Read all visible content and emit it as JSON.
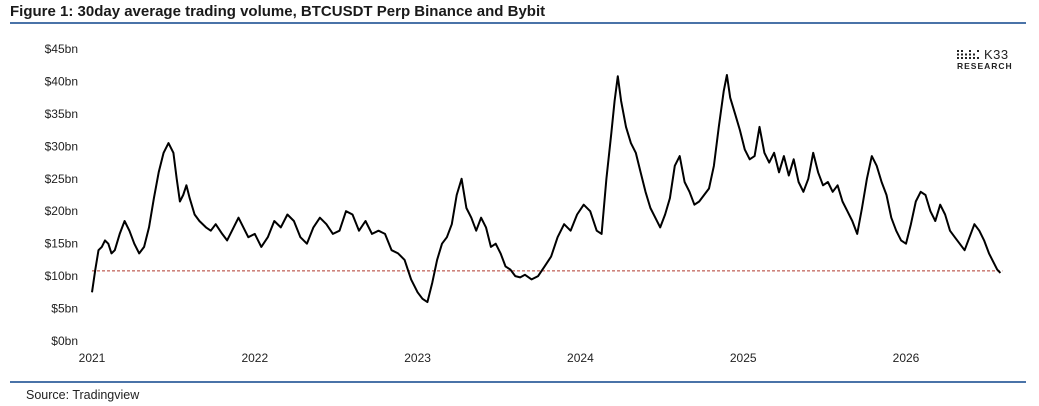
{
  "figure": {
    "title": "Figure 1: 30day average trading volume, BTCUSDT Perp Binance and Bybit",
    "source": "Source: Tradingview"
  },
  "logo": {
    "name": "K33",
    "sub": "RESEARCH",
    "icon": "k33-dots-logo"
  },
  "colors": {
    "line": "#000000",
    "reference": "#b03a2e",
    "rule": "#4a73a8"
  },
  "chart_data": {
    "type": "line",
    "title": "",
    "xlabel": "",
    "ylabel": "",
    "x_unit": "year",
    "xlim": [
      2021.0,
      2026.58
    ],
    "ylim": [
      0,
      45
    ],
    "yticks": [
      0,
      5,
      10,
      15,
      20,
      25,
      30,
      35,
      40,
      45
    ],
    "ytick_labels": [
      "$0bn",
      "$5bn",
      "$10bn",
      "$15bn",
      "$20bn",
      "$25bn",
      "$30bn",
      "$35bn",
      "$40bn",
      "$45bn"
    ],
    "xticks": [
      2021,
      2022,
      2023,
      2024,
      2025,
      2026
    ],
    "xtick_labels": [
      "2021",
      "2022",
      "2023",
      "2024",
      "2025",
      "2026"
    ],
    "grid": false,
    "reference_line": {
      "y": 10.8,
      "style": "dashed"
    },
    "series": [
      {
        "x": [
          2021.0,
          2021.02,
          2021.04,
          2021.06,
          2021.08,
          2021.1,
          2021.12,
          2021.14,
          2021.17,
          2021.2,
          2021.23,
          2021.26,
          2021.29,
          2021.32,
          2021.35,
          2021.38,
          2021.41,
          2021.44,
          2021.47,
          2021.5,
          2021.52,
          2021.54,
          2021.56,
          2021.58,
          2021.6,
          2021.63,
          2021.66,
          2021.7,
          2021.73,
          2021.76,
          2021.8,
          2021.83,
          2021.86,
          2021.9,
          2021.93,
          2021.96,
          2022.0,
          2022.04,
          2022.08,
          2022.12,
          2022.16,
          2022.2,
          2022.24,
          2022.28,
          2022.32,
          2022.36,
          2022.4,
          2022.44,
          2022.48,
          2022.52,
          2022.56,
          2022.6,
          2022.64,
          2022.68,
          2022.72,
          2022.76,
          2022.8,
          2022.84,
          2022.88,
          2022.92,
          2022.96,
          2023.0,
          2023.03,
          2023.06,
          2023.09,
          2023.12,
          2023.15,
          2023.18,
          2023.21,
          2023.24,
          2023.27,
          2023.3,
          2023.33,
          2023.36,
          2023.39,
          2023.42,
          2023.45,
          2023.48,
          2023.51,
          2023.54,
          2023.57,
          2023.6,
          2023.63,
          2023.66,
          2023.7,
          2023.74,
          2023.78,
          2023.82,
          2023.86,
          2023.9,
          2023.94,
          2023.98,
          2024.02,
          2024.06,
          2024.1,
          2024.13,
          2024.16,
          2024.19,
          2024.21,
          2024.23,
          2024.25,
          2024.28,
          2024.31,
          2024.34,
          2024.37,
          2024.4,
          2024.43,
          2024.46,
          2024.49,
          2024.52,
          2024.55,
          2024.58,
          2024.61,
          2024.64,
          2024.67,
          2024.7,
          2024.73,
          2024.76,
          2024.79,
          2024.82,
          2024.85,
          2024.88,
          2024.9,
          2024.92,
          2024.95,
          2024.98,
          2025.01,
          2025.04,
          2025.07,
          2025.1,
          2025.13,
          2025.16,
          2025.19,
          2025.22,
          2025.25,
          2025.28,
          2025.31,
          2025.34,
          2025.37,
          2025.4,
          2025.43,
          2025.46,
          2025.49,
          2025.52,
          2025.55,
          2025.58,
          2025.61,
          2025.64,
          2025.67,
          2025.7,
          2025.73,
          2025.76,
          2025.79,
          2025.82,
          2025.85,
          2025.88,
          2025.91,
          2025.94,
          2025.97,
          2026.0,
          2026.03,
          2026.06,
          2026.09,
          2026.12,
          2026.15,
          2026.18,
          2026.21,
          2026.24,
          2026.27,
          2026.3,
          2026.33,
          2026.36,
          2026.39,
          2026.42,
          2026.45,
          2026.48,
          2026.51,
          2026.54,
          2026.56,
          2026.58
        ],
        "values": [
          7.5,
          11.0,
          14.0,
          14.5,
          15.5,
          15.0,
          13.5,
          14.0,
          16.5,
          18.5,
          17.0,
          15.0,
          13.5,
          14.5,
          17.5,
          22.0,
          26.0,
          29.0,
          30.5,
          29.0,
          25.0,
          21.5,
          22.5,
          24.0,
          22.0,
          19.5,
          18.5,
          17.5,
          17.0,
          18.0,
          16.5,
          15.5,
          17.0,
          19.0,
          17.5,
          16.0,
          16.5,
          14.5,
          16.0,
          18.5,
          17.5,
          19.5,
          18.5,
          16.0,
          15.0,
          17.5,
          19.0,
          18.0,
          16.5,
          17.0,
          20.0,
          19.5,
          17.0,
          18.5,
          16.5,
          17.0,
          16.5,
          14.0,
          13.5,
          12.5,
          9.5,
          7.5,
          6.5,
          6.0,
          9.0,
          12.5,
          15.0,
          16.0,
          18.0,
          22.5,
          25.0,
          20.5,
          19.0,
          17.0,
          19.0,
          17.5,
          14.5,
          15.0,
          13.5,
          11.5,
          11.0,
          10.0,
          9.8,
          10.2,
          9.5,
          10.0,
          11.5,
          13.0,
          16.0,
          18.0,
          17.0,
          19.5,
          21.0,
          20.0,
          17.0,
          16.5,
          25.0,
          32.0,
          37.0,
          40.8,
          37.0,
          33.0,
          30.5,
          29.0,
          26.0,
          23.0,
          20.5,
          19.0,
          17.5,
          19.5,
          22.0,
          27.0,
          28.5,
          24.5,
          23.0,
          21.0,
          21.5,
          22.5,
          23.5,
          27.0,
          33.0,
          38.5,
          41.0,
          37.5,
          35.0,
          32.5,
          29.5,
          28.0,
          28.5,
          33.0,
          29.0,
          27.5,
          29.0,
          26.0,
          28.5,
          25.5,
          28.0,
          24.5,
          23.0,
          25.0,
          29.0,
          26.0,
          24.0,
          24.5,
          23.0,
          24.0,
          21.5,
          20.0,
          18.5,
          16.5,
          20.5,
          25.0,
          28.5,
          27.0,
          24.5,
          22.5,
          19.0,
          17.0,
          15.5,
          15.0,
          18.0,
          21.5,
          23.0,
          22.5,
          20.0,
          18.5,
          21.0,
          19.5,
          17.0,
          16.0,
          15.0,
          14.0,
          16.0,
          18.0,
          17.0,
          15.5,
          13.5,
          12.0,
          11.0,
          10.5
        ]
      }
    ]
  }
}
